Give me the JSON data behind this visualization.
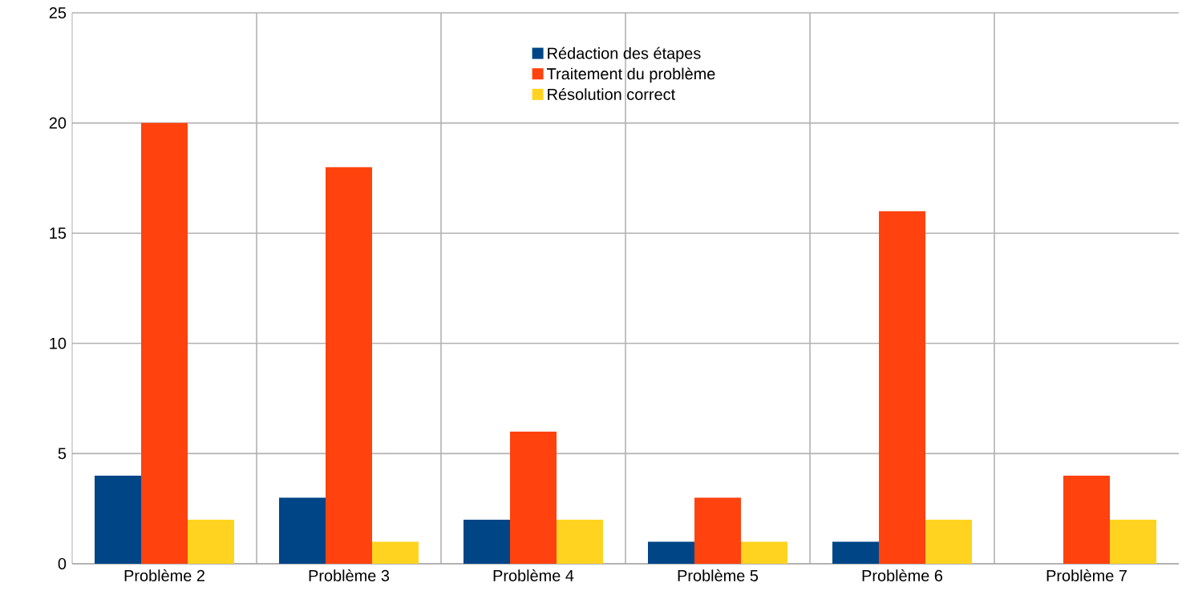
{
  "chart_data": {
    "type": "bar",
    "categories": [
      "Problème 2",
      "Problème 3",
      "Problème 4",
      "Problème 5",
      "Problème 6",
      "Problème 7"
    ],
    "series": [
      {
        "name": "Rédaction des étapes",
        "color": "#004586",
        "values": [
          4,
          3,
          2,
          1,
          1,
          0
        ]
      },
      {
        "name": "Traitement du problème",
        "color": "#ff420e",
        "values": [
          20,
          18,
          6,
          3,
          16,
          4
        ]
      },
      {
        "name": "Résolution correct",
        "color": "#ffd320",
        "values": [
          2,
          1,
          2,
          1,
          2,
          2
        ]
      }
    ],
    "ylim": [
      0,
      25
    ],
    "yticks": [
      0,
      5,
      10,
      15,
      20,
      25
    ],
    "grid": true,
    "legend": "top"
  }
}
